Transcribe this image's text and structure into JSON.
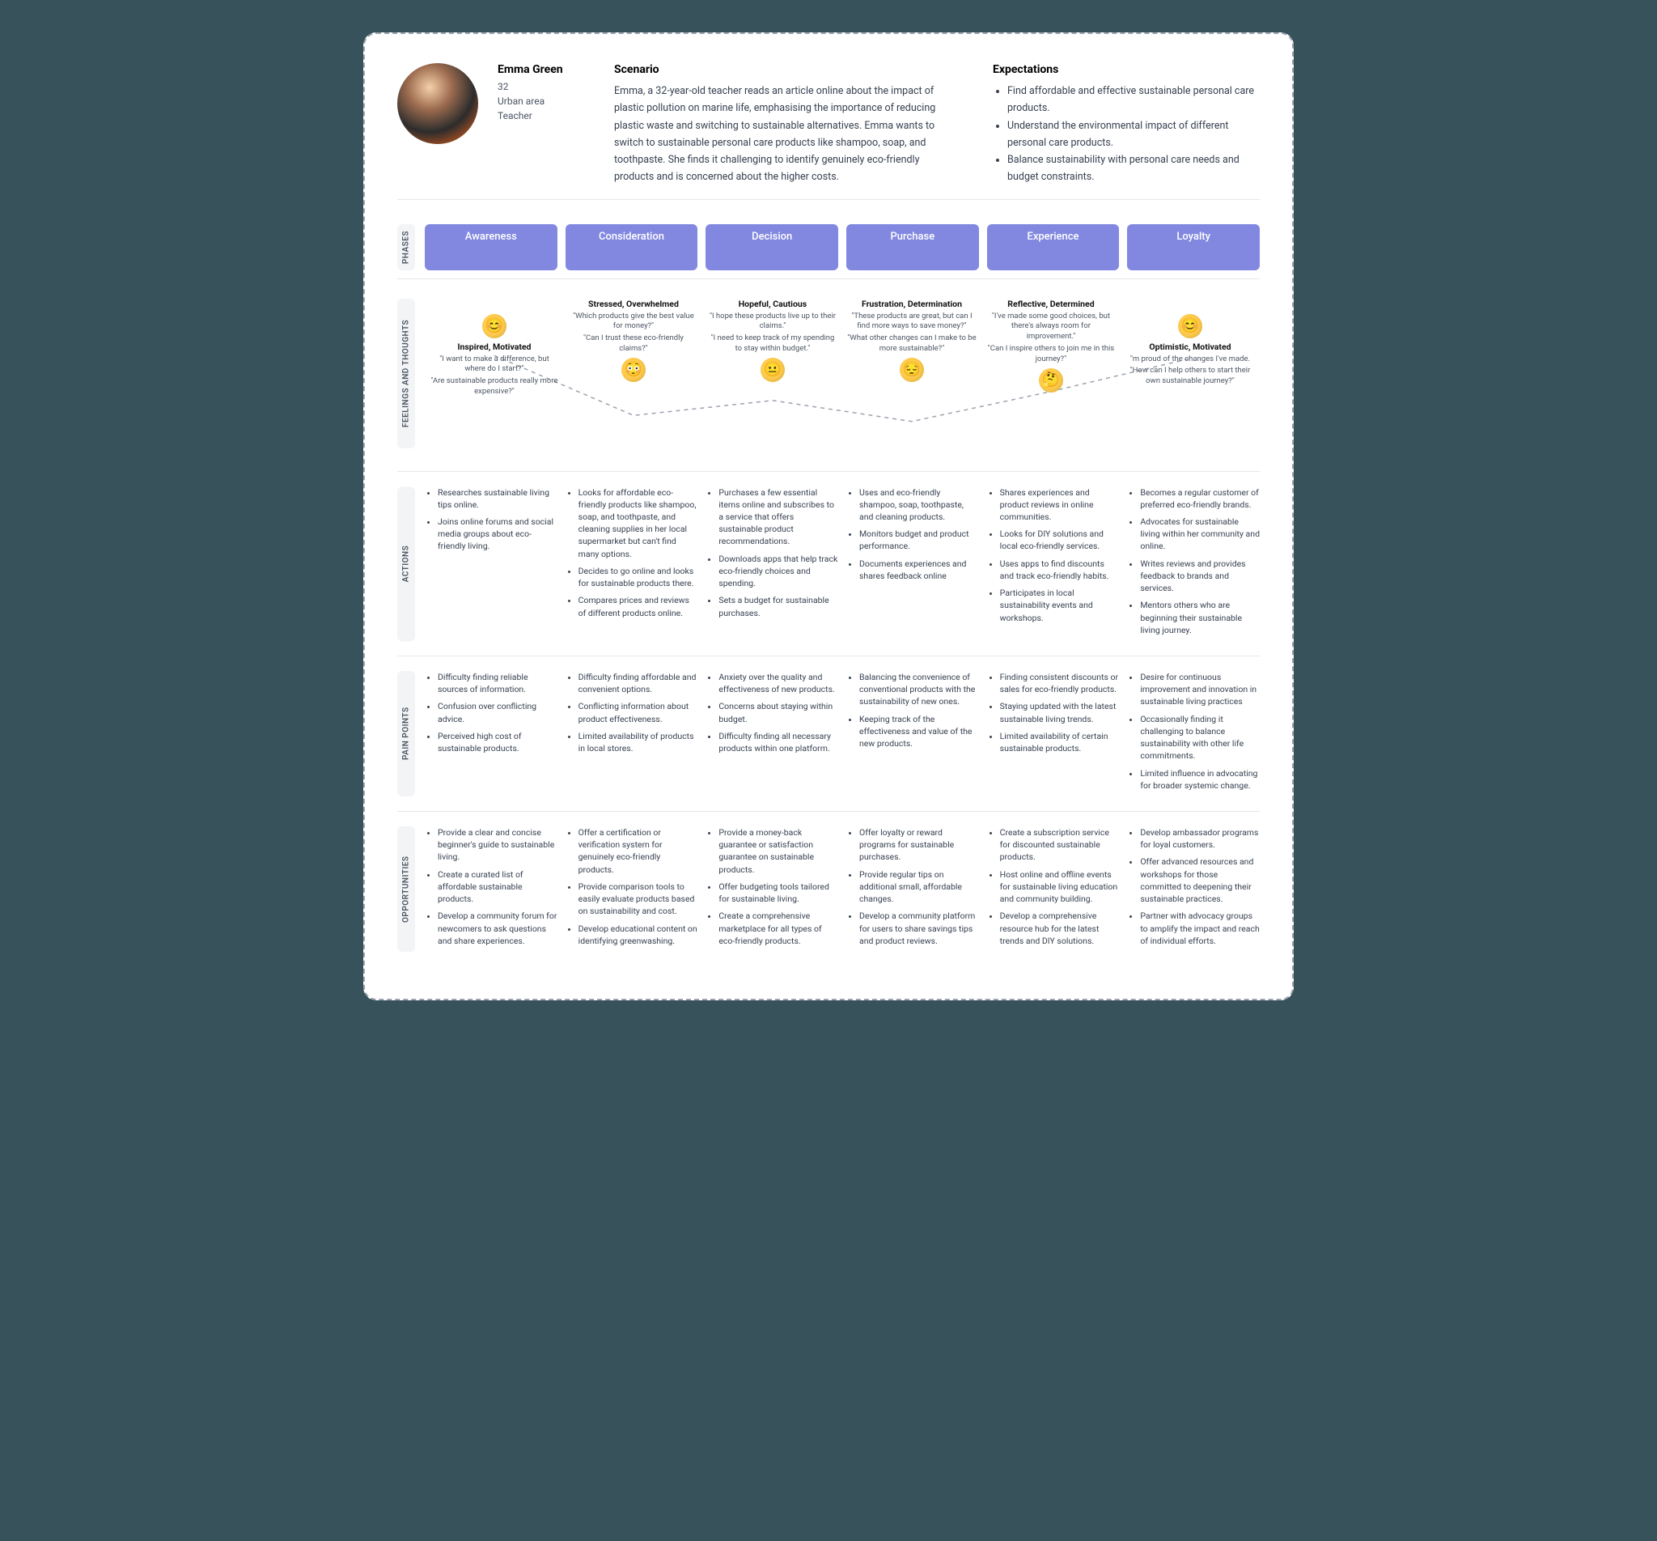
{
  "colors": {
    "page_bg": "#37525a",
    "card_bg": "#ffffff",
    "dashed_border": "#9ca3af",
    "phase_pill": "#8288e0",
    "label_bg": "#f3f4f6",
    "text_primary": "#374151",
    "divider": "#e5e7eb",
    "emoji_face": "#ffcc4d",
    "connector": "#9ca3af"
  },
  "persona": {
    "name": "Emma Green",
    "age": "32",
    "location": "Urban area",
    "occupation": "Teacher"
  },
  "scenario": {
    "heading": "Scenario",
    "text": "Emma, a 32-year-old teacher reads an article online about the impact of plastic pollution on marine life, emphasising the importance of reducing plastic waste and switching to sustainable alternatives. Emma wants to switch to sustainable personal care products like shampoo, soap, and toothpaste. She finds it challenging to identify genuinely eco-friendly products and is concerned about the higher costs."
  },
  "expectations": {
    "heading": "Expectations",
    "items": [
      "Find affordable and effective sustainable personal care products.",
      "Understand the environmental impact of different personal care products.",
      "Balance sustainability with personal care needs and budget constraints."
    ]
  },
  "labels": {
    "phases": "PHASES",
    "feelings": "FEELINGS AND THOUGHTS",
    "actions": "ACTIONS",
    "pain": "PAIN POINTS",
    "opp": "OPPORTUNITIES"
  },
  "phases": [
    "Awareness",
    "Consideration",
    "Decision",
    "Purchase",
    "Experience",
    "Loyalty"
  ],
  "feelings": {
    "connector_dash": "5,5",
    "nodes": [
      {
        "title": "Inspired, Motivated",
        "quotes": [
          "\"I want to make a difference, but where do I start?\"",
          "\"Are sustainable products really more expensive?\""
        ],
        "emoji": "😊",
        "layout": "emoji_top",
        "y_percent": 38
      },
      {
        "title": "Stressed, Overwhelmed",
        "quotes": [
          "\"Which products give the best value for money?\"",
          "\"Can I trust these eco-friendly claims?\""
        ],
        "emoji": "😳",
        "layout": "emoji_bottom",
        "y_percent": 78
      },
      {
        "title": "Hopeful, Cautious",
        "quotes": [
          "\"I hope these products live up to their claims.\"",
          "\"I need to keep track of my spending to stay within budget.\""
        ],
        "emoji": "😐",
        "layout": "emoji_bottom",
        "y_percent": 68
      },
      {
        "title": "Frustration, Determination",
        "quotes": [
          "\"These products are great, but can I find more ways to save money?\"",
          "\"What other changes can I make to be more sustainable?\""
        ],
        "emoji": "😔",
        "layout": "emoji_bottom",
        "y_percent": 82
      },
      {
        "title": "Reflective, Determined",
        "quotes": [
          "\"I've made some good choices, but there's always room for improvement.\"",
          "\"Can I inspire others to join me in this journey?\""
        ],
        "emoji": "🤔",
        "layout": "emoji_bottom",
        "y_percent": 62
      },
      {
        "title": "Optimistic, Motivated",
        "quotes": [
          "\"m proud of the changes I've made.",
          "\"How can I help others to start their own sustainable journey?\""
        ],
        "emoji": "😊",
        "layout": "emoji_top",
        "y_percent": 40
      }
    ]
  },
  "actions": [
    [
      "Researches sustainable living tips online.",
      "Joins online forums and social media groups about eco-friendly living."
    ],
    [
      "Looks for affordable eco-friendly products like shampoo, soap, and toothpaste, and cleaning supplies in her local supermarket but can't find many options.",
      "Decides to go online and looks for sustainable products there.",
      "Compares prices and reviews of different products online."
    ],
    [
      "Purchases a few essential items online and subscribes to a service that offers sustainable product recommendations.",
      "Downloads apps that help track eco-friendly choices and spending.",
      "Sets a budget for sustainable purchases."
    ],
    [
      "Uses and eco-friendly shampoo, soap, toothpaste, and cleaning products.",
      "Monitors budget and product performance.",
      "Documents experiences and shares feedback online"
    ],
    [
      "Shares experiences and product reviews in online communities.",
      "Looks for DIY solutions and local eco-friendly services.",
      "Uses apps to find discounts and track eco-friendly habits.",
      "Participates in local sustainability events and workshops."
    ],
    [
      "Becomes a regular customer of preferred eco-friendly brands.",
      "Advocates for sustainable living within her community and online.",
      "Writes reviews and provides feedback to brands and services.",
      "Mentors others who are beginning their sustainable living journey."
    ]
  ],
  "pain_points": [
    [
      "Difficulty finding reliable sources of information.",
      "Confusion over conflicting advice.",
      "Perceived high cost of sustainable products."
    ],
    [
      "Difficulty finding affordable and convenient options.",
      "Conflicting information about product effectiveness.",
      "Limited availability of products in local stores."
    ],
    [
      "Anxiety over the quality and effectiveness of new products.",
      "Concerns about staying within budget.",
      "Difficulty finding all necessary products within one platform."
    ],
    [
      "Balancing the convenience of conventional products with the sustainability of new ones.",
      "Keeping track of the effectiveness and value of the new products."
    ],
    [
      "Finding consistent discounts or sales for eco-friendly products.",
      "Staying updated with the latest sustainable living trends.",
      "Limited availability of certain sustainable products."
    ],
    [
      "Desire for continuous improvement and innovation in sustainable living practices",
      "Occasionally finding it challenging to balance sustainability with other life commitments.",
      "Limited influence in advocating for broader systemic change."
    ]
  ],
  "opportunities": [
    [
      "Provide a clear and concise beginner's guide to sustainable living.",
      "Create a curated list of affordable sustainable products.",
      "Develop a community forum for newcomers to ask questions and share experiences."
    ],
    [
      "Offer a certification or verification system for genuinely eco-friendly products.",
      "Provide comparison tools to easily evaluate products based on sustainability and cost.",
      "Develop educational content on identifying greenwashing."
    ],
    [
      "Provide a money-back guarantee or satisfaction guarantee on sustainable products.",
      "Offer budgeting tools tailored for sustainable living.",
      "Create a comprehensive marketplace for all types of eco-friendly products."
    ],
    [
      "Offer loyalty or reward programs for sustainable purchases.",
      "Provide regular tips on additional small, affordable changes.",
      "Develop a community platform for users to share savings tips and product reviews."
    ],
    [
      "Create a subscription service for discounted sustainable products.",
      "Host online and offline events for sustainable living education and community building.",
      "Develop a comprehensive resource hub for the latest trends and DIY solutions."
    ],
    [
      "Develop ambassador programs for loyal customers.",
      "Offer advanced resources and workshops for those committed to deepening their sustainable practices.",
      "Partner with advocacy groups to amplify the impact and reach of individual efforts."
    ]
  ]
}
